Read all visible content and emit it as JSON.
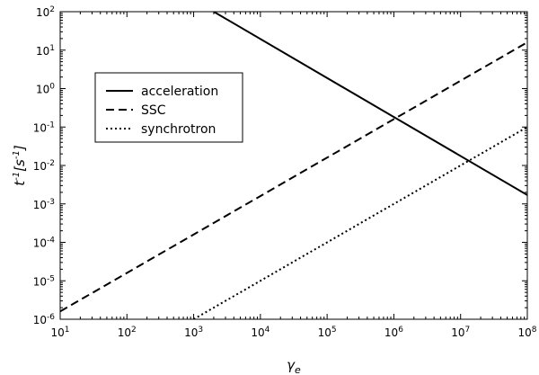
{
  "chart_data": {
    "type": "line",
    "xlabel": "γ_e",
    "ylabel": "t^-1 [s^-1]",
    "xscale": "log",
    "yscale": "log",
    "xlim": [
      10,
      100000000
    ],
    "ylim": [
      1e-06,
      100
    ],
    "x_ticks": [
      {
        "base": "10",
        "exp": "1",
        "value": 10
      },
      {
        "base": "10",
        "exp": "2",
        "value": 100
      },
      {
        "base": "10",
        "exp": "3",
        "value": 1000
      },
      {
        "base": "10",
        "exp": "4",
        "value": 10000
      },
      {
        "base": "10",
        "exp": "5",
        "value": 100000
      },
      {
        "base": "10",
        "exp": "6",
        "value": 1000000
      },
      {
        "base": "10",
        "exp": "7",
        "value": 10000000
      },
      {
        "base": "10",
        "exp": "8",
        "value": 100000000
      }
    ],
    "y_ticks": [
      {
        "base": "10",
        "exp": "-6",
        "value": 1e-06
      },
      {
        "base": "10",
        "exp": "-5",
        "value": 1e-05
      },
      {
        "base": "10",
        "exp": "-4",
        "value": 0.0001
      },
      {
        "base": "10",
        "exp": "-3",
        "value": 0.001
      },
      {
        "base": "10",
        "exp": "-2",
        "value": 0.01
      },
      {
        "base": "10",
        "exp": "-1",
        "value": 0.1
      },
      {
        "base": "10",
        "exp": "0",
        "value": 1
      },
      {
        "base": "10",
        "exp": "1",
        "value": 10
      },
      {
        "base": "10",
        "exp": "2",
        "value": 100
      }
    ],
    "legend_position": "upper-left",
    "series": [
      {
        "name": "acceleration",
        "style": "solid",
        "x": [
          2000,
          100000000
        ],
        "y": [
          100,
          0.0017
        ]
      },
      {
        "name": "SSC",
        "style": "dashed",
        "x": [
          10,
          100000000
        ],
        "y": [
          1.6e-06,
          16
        ]
      },
      {
        "name": "synchrotron",
        "style": "dotted",
        "x": [
          1000,
          100000000
        ],
        "y": [
          1e-06,
          0.1
        ]
      }
    ]
  }
}
